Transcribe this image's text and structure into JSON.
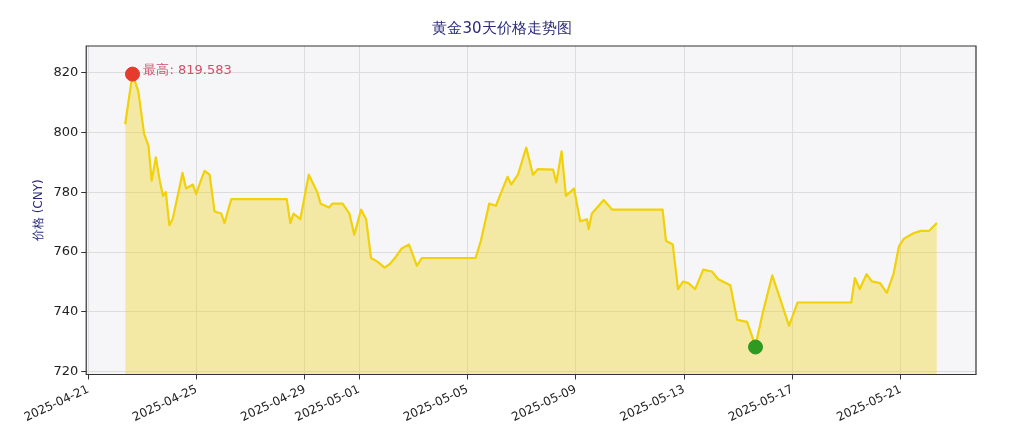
{
  "chart_data": {
    "type": "area",
    "title": "黄金30天价格走势图",
    "ylabel": "价格 (CNY)",
    "xlim": [
      "2025-04-20T22:10",
      "2025-05-23T18:30"
    ],
    "xticks": [
      "2025-04-21",
      "2025-04-25",
      "2025-04-29",
      "2025-05-01",
      "2025-05-05",
      "2025-05-09",
      "2025-05-13",
      "2025-05-17",
      "2025-05-21"
    ],
    "ylim": [
      719,
      829
    ],
    "yticks": [
      720,
      740,
      760,
      780,
      800,
      820
    ],
    "grid": true,
    "legend": false,
    "marker": "none",
    "line_style": "solid",
    "annotations": [
      {
        "text": "最高: 819.583",
        "x": "2025-04-22T15:10",
        "y": 819.583
      }
    ],
    "series": [
      {
        "color": "#f0d10a",
        "x": [
          "2025-04-22T08:40",
          "2025-04-22T15:10",
          "2025-04-22T20:20",
          "2025-04-23T01:30",
          "2025-04-23T05:20",
          "2025-04-23T08:10",
          "2025-04-23T11:50",
          "2025-04-23T15:20",
          "2025-04-23T18:10",
          "2025-04-23T20:40",
          "2025-04-23T23:50",
          "2025-04-24T02:40",
          "2025-04-24T07:10",
          "2025-04-24T11:30",
          "2025-04-24T14:40",
          "2025-04-24T20:40",
          "2025-04-24T23:30",
          "2025-04-25T03:10",
          "2025-04-25T07:00",
          "2025-04-25T11:30",
          "2025-04-25T15:50",
          "2025-04-25T21:50",
          "2025-04-26T00:40",
          "2025-04-26T06:40",
          "2025-04-28T07:50",
          "2025-04-28T11:00",
          "2025-04-28T13:50",
          "2025-04-28T19:50",
          "2025-04-29T03:20",
          "2025-04-29T10:50",
          "2025-04-29T13:50",
          "2025-04-29T21:20",
          "2025-04-30T00:10",
          "2025-04-30T09:20",
          "2025-04-30T15:20",
          "2025-04-30T19:40",
          "2025-05-01T01:40",
          "2025-05-01T06:10",
          "2025-05-01T10:30",
          "2025-05-01T16:30",
          "2025-05-01T22:30",
          "2025-05-02T03:10",
          "2025-05-02T07:40",
          "2025-05-02T13:40",
          "2025-05-02T20:10",
          "2025-05-03T03:10",
          "2025-05-03T07:30",
          "2025-05-05T07:10",
          "2025-05-05T11:50",
          "2025-05-05T19:10",
          "2025-05-06T01:10",
          "2025-05-06T05:50",
          "2025-05-06T11:30",
          "2025-05-06T14:40",
          "2025-05-06T20:40",
          "2025-05-07T04:00",
          "2025-05-07T10:00",
          "2025-05-07T14:20",
          "2025-05-08T03:50",
          "2025-05-08T06:40",
          "2025-05-08T11:20",
          "2025-05-08T15:10",
          "2025-05-08T22:20",
          "2025-05-09T03:50",
          "2025-05-09T09:50",
          "2025-05-09T11:20",
          "2025-05-09T14:10",
          "2025-05-10T00:40",
          "2025-05-10T08:10",
          "2025-05-12T04:50",
          "2025-05-12T07:50",
          "2025-05-12T13:50",
          "2025-05-12T18:30",
          "2025-05-12T22:50",
          "2025-05-13T03:40",
          "2025-05-13T09:40",
          "2025-05-13T16:50",
          "2025-05-14T00:30",
          "2025-05-14T06:10",
          "2025-05-14T16:50",
          "2025-05-14T22:50",
          "2025-05-15T07:40",
          "2025-05-15T13:40",
          "2025-05-15T15:10",
          "2025-05-15T21:40",
          "2025-05-16T06:00",
          "2025-05-16T13:30",
          "2025-05-16T20:50",
          "2025-05-17T04:20",
          "2025-05-19T04:00",
          "2025-05-19T07:10",
          "2025-05-19T11:30",
          "2025-05-19T17:30",
          "2025-05-19T22:10",
          "2025-05-20T05:30",
          "2025-05-20T11:30",
          "2025-05-20T17:30",
          "2025-05-20T22:10",
          "2025-05-21T02:40",
          "2025-05-21T11:30",
          "2025-05-21T17:30",
          "2025-05-22T01:00",
          "2025-05-22T07:50"
        ],
        "values": [
          802.8,
          819.6,
          813.8,
          799.5,
          795.6,
          783.9,
          791.7,
          783.9,
          778.8,
          780.1,
          769,
          771,
          778.8,
          786.5,
          781.3,
          782.6,
          779.4,
          783.3,
          787.2,
          785.9,
          773.6,
          772.9,
          769.7,
          777.7,
          777.7,
          769.7,
          772.9,
          771,
          785.9,
          780.1,
          776.2,
          774.9,
          776.2,
          776.2,
          772.9,
          765.8,
          774.2,
          771,
          758,
          756.7,
          754.8,
          756,
          758,
          761.2,
          762.5,
          755.4,
          758,
          758,
          763.8,
          776.2,
          775.5,
          780,
          785.2,
          782.6,
          785.9,
          795,
          785.9,
          787.8,
          787.6,
          783.3,
          793.7,
          778.8,
          781.3,
          770.3,
          771,
          767.7,
          772.9,
          777.4,
          774.2,
          774.2,
          763.8,
          762.5,
          747.6,
          750.1,
          749.6,
          747.6,
          754.1,
          753.5,
          750.9,
          748.9,
          737.3,
          736.6,
          730.1,
          728.8,
          739.8,
          752.2,
          743.7,
          735.3,
          743.1,
          743.1,
          751.3,
          747.6,
          752.6,
          750.2,
          749.6,
          746.3,
          752.8,
          761.9,
          764.5,
          766.4,
          767.1,
          767.1,
          769.7
        ]
      },
      {
        "type": "scatter",
        "marker": "circle",
        "x": [
          "2025-04-22T15:10",
          "2025-05-15T15:10"
        ],
        "values": [
          819.583,
          728.2
        ],
        "colors": [
          "#e53a2c",
          "#2e9a22"
        ]
      }
    ]
  }
}
